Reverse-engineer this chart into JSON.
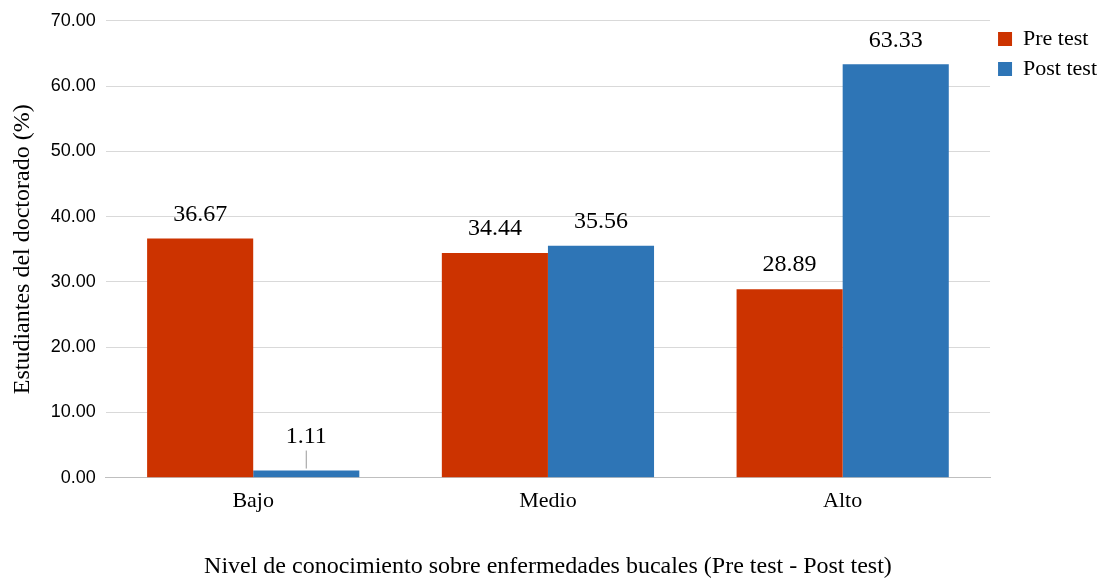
{
  "chart_data": {
    "type": "bar",
    "xlabel": "Nivel de conocimiento sobre enfermedades bucales (Pre test - Post test)",
    "ylabel": "Estudiantes del doctorado (%)",
    "categories": [
      "Bajo",
      "Medio",
      "Alto"
    ],
    "series": [
      {
        "name": "Pre test",
        "color": "#cc3300",
        "values": [
          36.67,
          34.44,
          28.89
        ]
      },
      {
        "name": "Post test",
        "color": "#2e75b6",
        "values": [
          1.11,
          35.56,
          63.33
        ]
      }
    ],
    "ylim": [
      0,
      70
    ],
    "yticks": [
      {
        "value": 0,
        "label": "0.00"
      },
      {
        "value": 10,
        "label": "10.00"
      },
      {
        "value": 20,
        "label": "20.00"
      },
      {
        "value": 30,
        "label": "30.00"
      },
      {
        "value": 40,
        "label": "40.00"
      },
      {
        "value": 50,
        "label": "50.00"
      },
      {
        "value": 60,
        "label": "60.00"
      },
      {
        "value": 70,
        "label": "70.00"
      }
    ],
    "grid": "y",
    "legend": "top right",
    "data_labels": true
  }
}
